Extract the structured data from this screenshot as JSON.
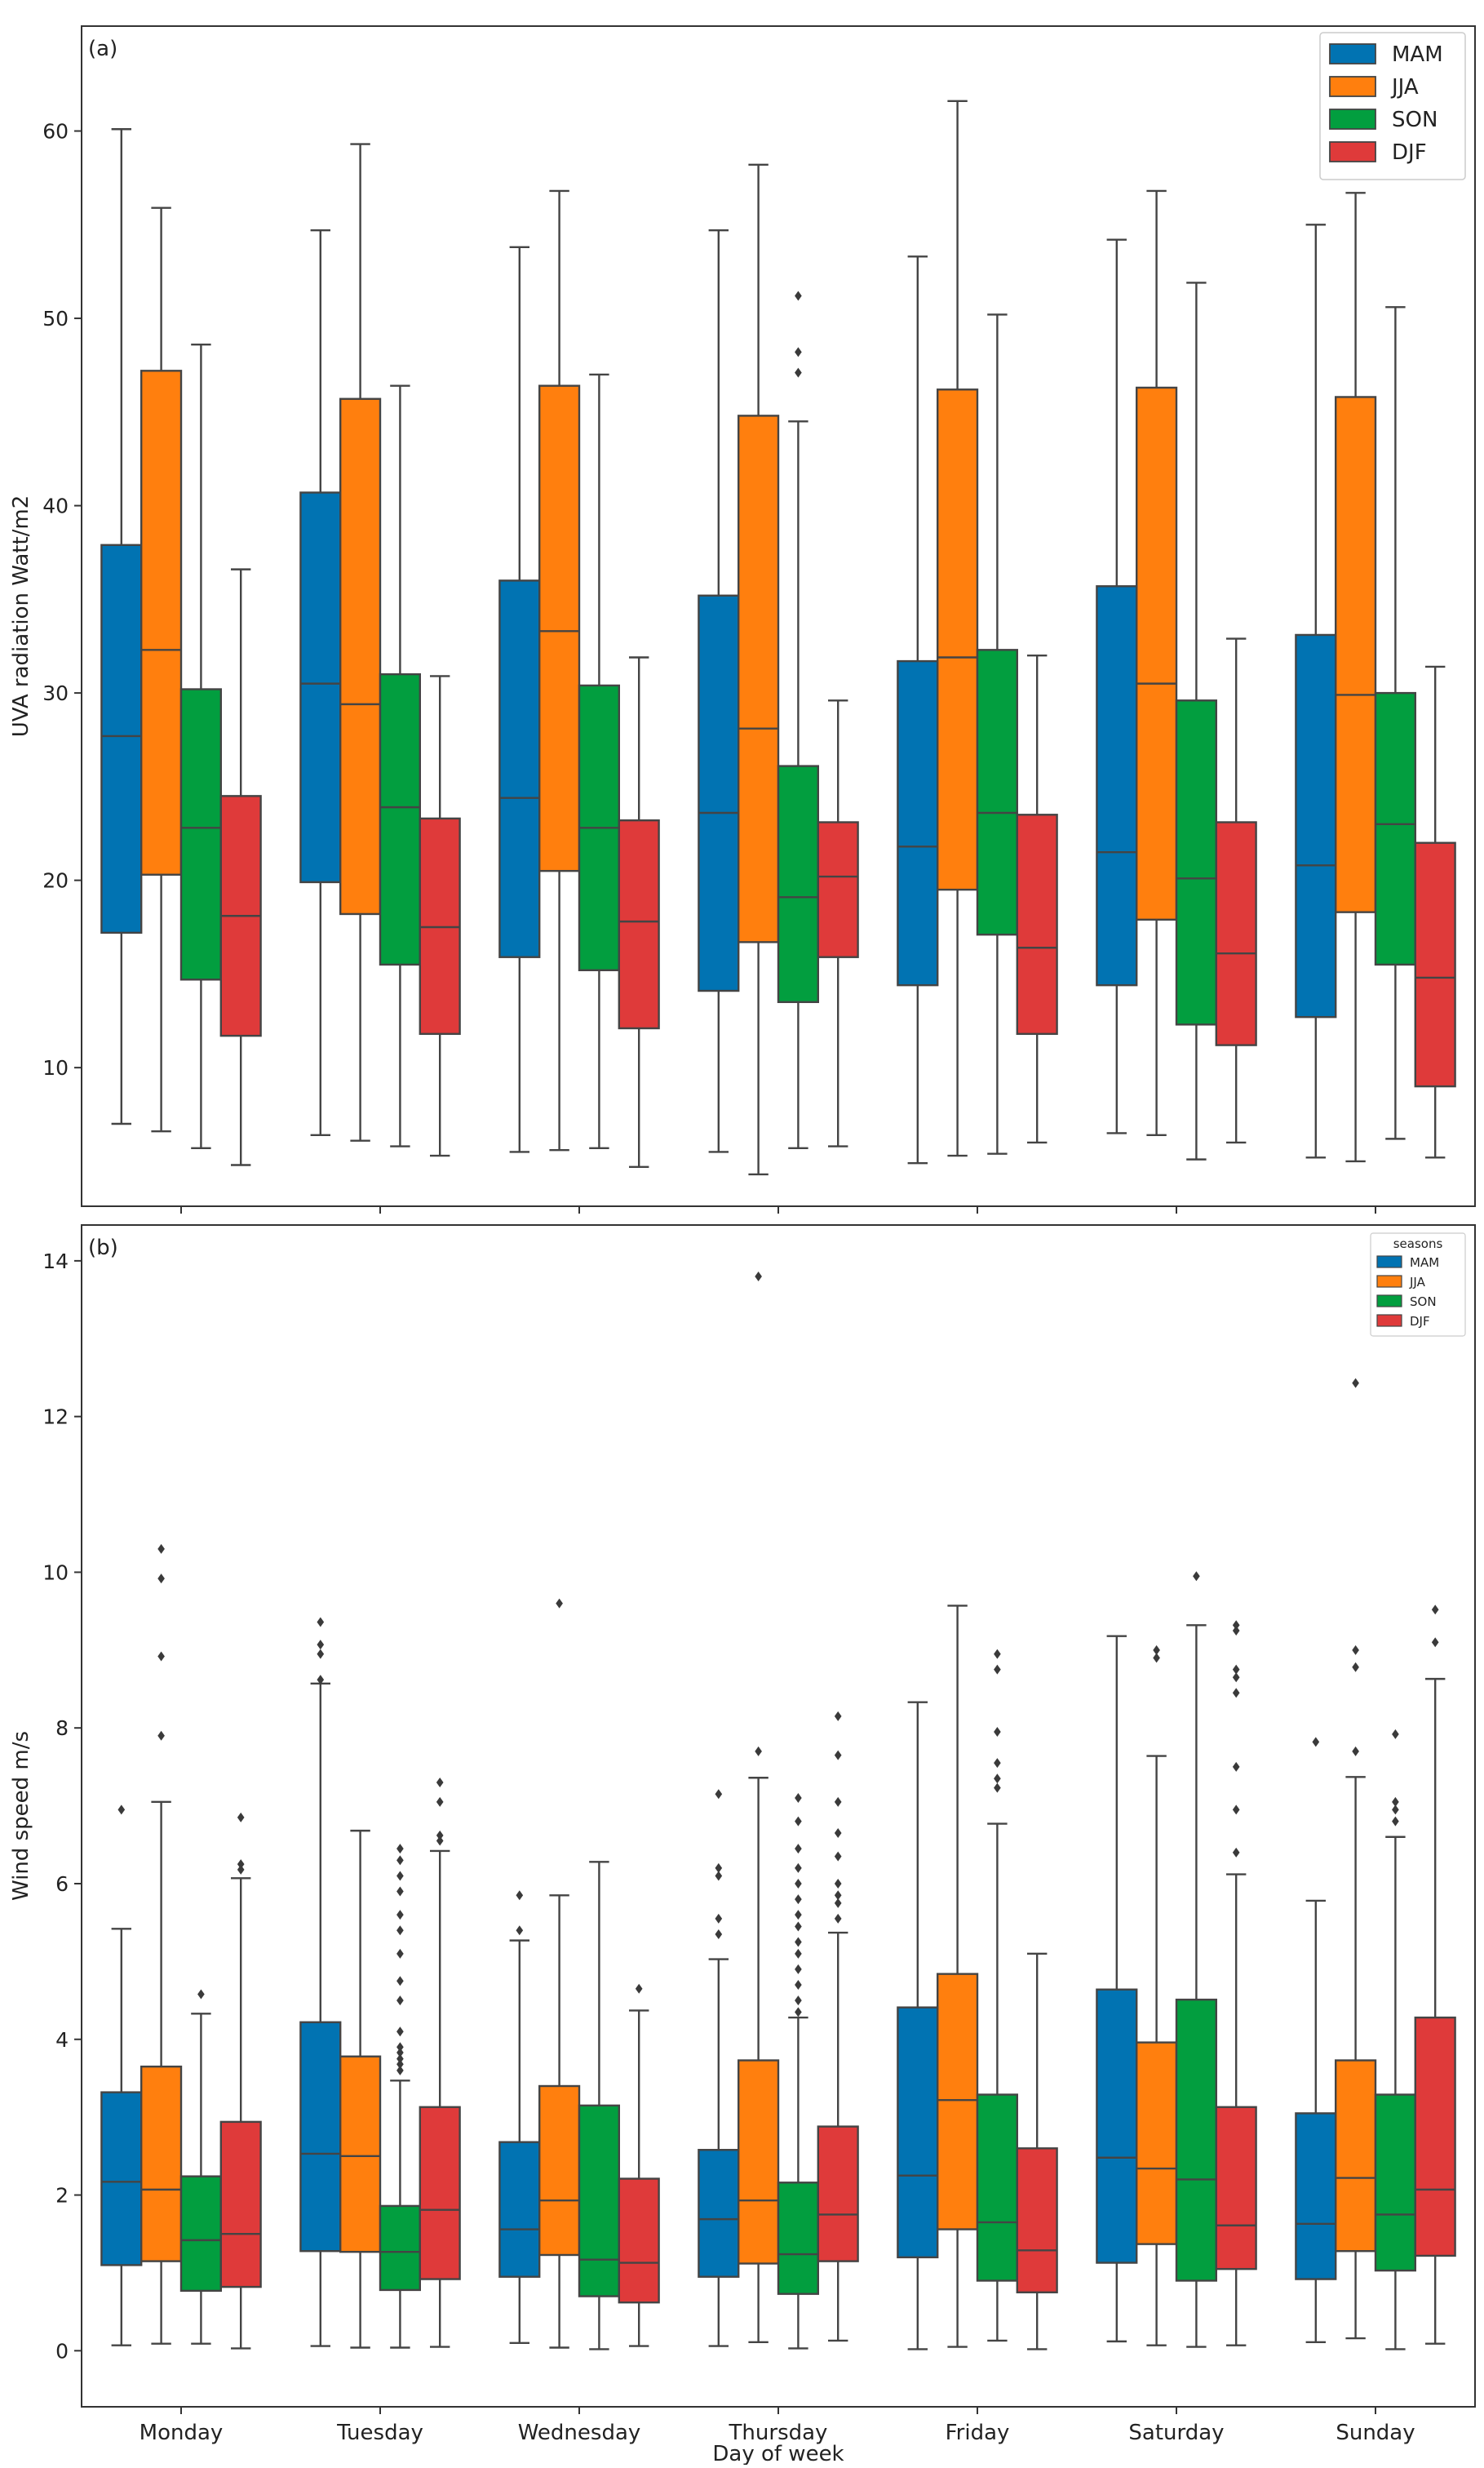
{
  "chart_data": [
    {
      "type": "boxplot",
      "panel_label": "(a)",
      "title": "",
      "xlabel": "",
      "ylabel": "UVA radiation Watt/m2",
      "ylim": [
        2.6,
        65.6
      ],
      "yticks": [
        10,
        20,
        30,
        40,
        50,
        60
      ],
      "categories": [
        "Monday",
        "Tuesday",
        "Wednesday",
        "Thursday",
        "Friday",
        "Saturday",
        "Sunday"
      ],
      "legend": {
        "title": "",
        "placement": "top-right"
      },
      "series": [
        {
          "name": "MAM",
          "color": "#0173b2",
          "boxes": [
            {
              "min": 7.0,
              "q1": 17.2,
              "median": 27.7,
              "q3": 37.9,
              "max": 60.1,
              "outliers": []
            },
            {
              "min": 6.4,
              "q1": 19.9,
              "median": 30.5,
              "q3": 40.7,
              "max": 54.7,
              "outliers": []
            },
            {
              "min": 5.5,
              "q1": 15.9,
              "median": 24.4,
              "q3": 36.0,
              "max": 53.8,
              "outliers": []
            },
            {
              "min": 5.5,
              "q1": 14.1,
              "median": 23.6,
              "q3": 35.2,
              "max": 54.7,
              "outliers": []
            },
            {
              "min": 4.9,
              "q1": 14.4,
              "median": 21.8,
              "q3": 31.7,
              "max": 53.3,
              "outliers": []
            },
            {
              "min": 6.5,
              "q1": 14.4,
              "median": 21.5,
              "q3": 35.7,
              "max": 54.2,
              "outliers": []
            },
            {
              "min": 5.2,
              "q1": 12.7,
              "median": 20.8,
              "q3": 33.1,
              "max": 55.0,
              "outliers": []
            }
          ]
        },
        {
          "name": "JJA",
          "color": "#ff7f0e",
          "boxes": [
            {
              "min": 6.6,
              "q1": 20.3,
              "median": 32.3,
              "q3": 47.2,
              "max": 55.9,
              "outliers": []
            },
            {
              "min": 6.1,
              "q1": 18.2,
              "median": 29.4,
              "q3": 45.7,
              "max": 59.3,
              "outliers": []
            },
            {
              "min": 5.6,
              "q1": 20.5,
              "median": 33.3,
              "q3": 46.4,
              "max": 56.8,
              "outliers": []
            },
            {
              "min": 4.3,
              "q1": 16.7,
              "median": 28.1,
              "q3": 44.8,
              "max": 58.2,
              "outliers": []
            },
            {
              "min": 5.3,
              "q1": 19.5,
              "median": 31.9,
              "q3": 46.2,
              "max": 61.6,
              "outliers": []
            },
            {
              "min": 6.4,
              "q1": 17.9,
              "median": 30.5,
              "q3": 46.3,
              "max": 56.8,
              "outliers": []
            },
            {
              "min": 5.0,
              "q1": 18.3,
              "median": 29.9,
              "q3": 45.8,
              "max": 56.7,
              "outliers": []
            }
          ]
        },
        {
          "name": "SON",
          "color": "#029e3f",
          "boxes": [
            {
              "min": 5.7,
              "q1": 14.7,
              "median": 22.8,
              "q3": 30.2,
              "max": 48.6,
              "outliers": []
            },
            {
              "min": 5.8,
              "q1": 15.5,
              "median": 23.9,
              "q3": 31.0,
              "max": 46.4,
              "outliers": []
            },
            {
              "min": 5.7,
              "q1": 15.2,
              "median": 22.8,
              "q3": 30.4,
              "max": 47.0,
              "outliers": []
            },
            {
              "min": 5.7,
              "q1": 13.5,
              "median": 19.1,
              "q3": 26.1,
              "max": 44.5,
              "outliers": [
                47.1,
                48.2,
                51.2
              ]
            },
            {
              "min": 5.4,
              "q1": 17.1,
              "median": 23.6,
              "q3": 32.3,
              "max": 50.2,
              "outliers": []
            },
            {
              "min": 5.1,
              "q1": 12.3,
              "median": 20.1,
              "q3": 29.6,
              "max": 51.9,
              "outliers": []
            },
            {
              "min": 6.2,
              "q1": 15.5,
              "median": 23.0,
              "q3": 30.0,
              "max": 50.6,
              "outliers": []
            }
          ]
        },
        {
          "name": "DJF",
          "color": "#df3a3a",
          "boxes": [
            {
              "min": 4.8,
              "q1": 11.7,
              "median": 18.1,
              "q3": 24.5,
              "max": 36.6,
              "outliers": []
            },
            {
              "min": 5.3,
              "q1": 11.8,
              "median": 17.5,
              "q3": 23.3,
              "max": 30.9,
              "outliers": []
            },
            {
              "min": 4.7,
              "q1": 12.1,
              "median": 17.8,
              "q3": 23.2,
              "max": 31.9,
              "outliers": []
            },
            {
              "min": 5.8,
              "q1": 15.9,
              "median": 20.2,
              "q3": 23.1,
              "max": 29.6,
              "outliers": []
            },
            {
              "min": 6.0,
              "q1": 11.8,
              "median": 16.4,
              "q3": 23.5,
              "max": 32.0,
              "outliers": []
            },
            {
              "min": 6.0,
              "q1": 11.2,
              "median": 16.1,
              "q3": 23.1,
              "max": 32.9,
              "outliers": []
            },
            {
              "min": 5.2,
              "q1": 9.0,
              "median": 14.8,
              "q3": 22.0,
              "max": 31.4,
              "outliers": []
            }
          ]
        }
      ]
    },
    {
      "type": "boxplot",
      "panel_label": "(b)",
      "title": "",
      "xlabel": "Day of week",
      "ylabel": "Wind speed m/s",
      "ylim": [
        -0.72,
        14.46
      ],
      "yticks": [
        0,
        2,
        4,
        6,
        8,
        10,
        12,
        14
      ],
      "categories": [
        "Monday",
        "Tuesday",
        "Wednesday",
        "Thursday",
        "Friday",
        "Saturday",
        "Sunday"
      ],
      "legend": {
        "title": "seasons",
        "placement": "top-right"
      },
      "series": [
        {
          "name": "MAM",
          "color": "#0173b2",
          "boxes": [
            {
              "min": 0.07,
              "q1": 1.1,
              "median": 2.17,
              "q3": 3.32,
              "max": 5.42,
              "outliers": [
                6.95
              ]
            },
            {
              "min": 0.06,
              "q1": 1.28,
              "median": 2.53,
              "q3": 4.22,
              "max": 8.57,
              "outliers": [
                8.62,
                8.95,
                9.07,
                9.36
              ]
            },
            {
              "min": 0.1,
              "q1": 0.95,
              "median": 1.56,
              "q3": 2.68,
              "max": 5.27,
              "outliers": [
                5.4,
                5.85
              ]
            },
            {
              "min": 0.06,
              "q1": 0.95,
              "median": 1.69,
              "q3": 2.58,
              "max": 5.03,
              "outliers": [
                5.35,
                5.55,
                6.1,
                6.2,
                7.15
              ]
            },
            {
              "min": 0.02,
              "q1": 1.2,
              "median": 2.25,
              "q3": 4.41,
              "max": 8.33,
              "outliers": []
            },
            {
              "min": 0.12,
              "q1": 1.13,
              "median": 2.48,
              "q3": 4.64,
              "max": 9.18,
              "outliers": []
            },
            {
              "min": 0.11,
              "q1": 0.92,
              "median": 1.63,
              "q3": 3.05,
              "max": 5.78,
              "outliers": [
                7.82
              ]
            }
          ]
        },
        {
          "name": "JJA",
          "color": "#ff7f0e",
          "boxes": [
            {
              "min": 0.09,
              "q1": 1.15,
              "median": 2.07,
              "q3": 3.65,
              "max": 7.05,
              "outliers": [
                7.9,
                8.92,
                9.92,
                10.3
              ]
            },
            {
              "min": 0.04,
              "q1": 1.27,
              "median": 2.5,
              "q3": 3.78,
              "max": 6.68,
              "outliers": []
            },
            {
              "min": 0.04,
              "q1": 1.23,
              "median": 1.93,
              "q3": 3.4,
              "max": 5.85,
              "outliers": [
                9.6
              ]
            },
            {
              "min": 0.11,
              "q1": 1.12,
              "median": 1.93,
              "q3": 3.73,
              "max": 7.36,
              "outliers": [
                7.7,
                13.8
              ]
            },
            {
              "min": 0.05,
              "q1": 1.56,
              "median": 3.22,
              "q3": 4.84,
              "max": 9.57,
              "outliers": []
            },
            {
              "min": 0.07,
              "q1": 1.37,
              "median": 2.34,
              "q3": 3.96,
              "max": 7.64,
              "outliers": [
                8.9,
                9.0
              ]
            },
            {
              "min": 0.16,
              "q1": 1.28,
              "median": 2.22,
              "q3": 3.73,
              "max": 7.37,
              "outliers": [
                7.7,
                8.78,
                9.0,
                12.43
              ]
            }
          ]
        },
        {
          "name": "SON",
          "color": "#029e3f",
          "boxes": [
            {
              "min": 0.09,
              "q1": 0.77,
              "median": 1.42,
              "q3": 2.24,
              "max": 4.33,
              "outliers": [
                4.58
              ]
            },
            {
              "min": 0.04,
              "q1": 0.78,
              "median": 1.27,
              "q3": 1.86,
              "max": 3.47,
              "outliers": [
                3.6,
                3.68,
                3.75,
                3.83,
                3.9,
                4.1,
                4.5,
                4.75,
                5.1,
                5.4,
                5.6,
                5.9,
                6.1,
                6.3,
                6.45
              ]
            },
            {
              "min": 0.02,
              "q1": 0.7,
              "median": 1.17,
              "q3": 3.15,
              "max": 6.28,
              "outliers": []
            },
            {
              "min": 0.03,
              "q1": 0.73,
              "median": 1.24,
              "q3": 2.16,
              "max": 4.28,
              "outliers": [
                4.35,
                4.5,
                4.7,
                4.9,
                5.1,
                5.25,
                5.45,
                5.6,
                5.8,
                6.0,
                6.2,
                6.45,
                6.8,
                7.1
              ]
            },
            {
              "min": 0.13,
              "q1": 0.9,
              "median": 1.65,
              "q3": 3.29,
              "max": 6.77,
              "outliers": [
                7.23,
                7.35,
                7.55,
                7.95,
                8.75,
                8.95
              ]
            },
            {
              "min": 0.05,
              "q1": 0.9,
              "median": 2.2,
              "q3": 4.51,
              "max": 9.32,
              "outliers": [
                9.95
              ]
            },
            {
              "min": 0.02,
              "q1": 1.03,
              "median": 1.75,
              "q3": 3.29,
              "max": 6.6,
              "outliers": [
                6.8,
                6.95,
                7.05,
                7.92
              ]
            }
          ]
        },
        {
          "name": "DJF",
          "color": "#df3a3a",
          "boxes": [
            {
              "min": 0.03,
              "q1": 0.82,
              "median": 1.5,
              "q3": 2.94,
              "max": 6.07,
              "outliers": [
                6.18,
                6.25,
                6.85
              ]
            },
            {
              "min": 0.05,
              "q1": 0.92,
              "median": 1.81,
              "q3": 3.13,
              "max": 6.42,
              "outliers": [
                6.55,
                6.62,
                7.05,
                7.3
              ]
            },
            {
              "min": 0.06,
              "q1": 0.62,
              "median": 1.13,
              "q3": 2.21,
              "max": 4.37,
              "outliers": [
                4.65
              ]
            },
            {
              "min": 0.13,
              "q1": 1.15,
              "median": 1.75,
              "q3": 2.88,
              "max": 5.37,
              "outliers": [
                5.55,
                5.75,
                5.85,
                6.0,
                6.35,
                6.65,
                7.05,
                7.65,
                8.15
              ]
            },
            {
              "min": 0.02,
              "q1": 0.75,
              "median": 1.29,
              "q3": 2.6,
              "max": 5.1,
              "outliers": []
            },
            {
              "min": 0.07,
              "q1": 1.05,
              "median": 1.61,
              "q3": 3.13,
              "max": 6.12,
              "outliers": [
                6.4,
                6.95,
                7.5,
                8.45,
                8.65,
                8.75,
                9.25,
                9.32
              ]
            },
            {
              "min": 0.09,
              "q1": 1.22,
              "median": 2.07,
              "q3": 4.28,
              "max": 8.63,
              "outliers": [
                9.1,
                9.52
              ]
            }
          ]
        }
      ]
    }
  ]
}
